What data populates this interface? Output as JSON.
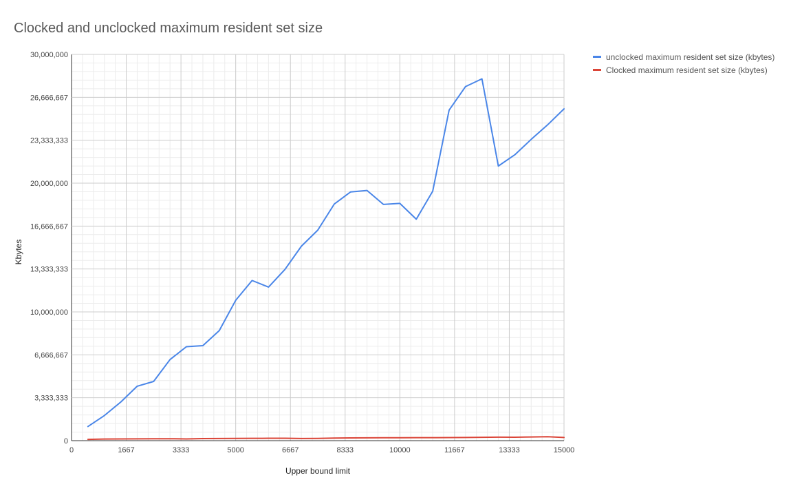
{
  "title": "Clocked and unclocked maximum resident set size",
  "chart_data": {
    "type": "line",
    "title": "Clocked and unclocked maximum resident set size",
    "xlabel": "Upper bound limit",
    "ylabel": "Kbytes",
    "xlim": [
      0,
      15000
    ],
    "ylim": [
      0,
      30000000
    ],
    "x_ticks": [
      "0",
      "1667",
      "3333",
      "5000",
      "6667",
      "8333",
      "10000",
      "11667",
      "13333",
      "15000"
    ],
    "y_ticks": [
      "0",
      "3,333,333",
      "6,666,667",
      "10,000,000",
      "13,333,333",
      "16,666,667",
      "20,000,000",
      "23,333,333",
      "26,666,667",
      "30,000,000"
    ],
    "grid": true,
    "legend_position": "top-right",
    "x": [
      500,
      1000,
      1500,
      2000,
      2500,
      3000,
      3500,
      4000,
      4500,
      5000,
      5500,
      6000,
      6500,
      7000,
      7500,
      8000,
      8500,
      9000,
      9500,
      10000,
      10500,
      11000,
      11500,
      12000,
      12500,
      13000,
      13500,
      14000,
      14500,
      15000
    ],
    "series": [
      {
        "name": "unclocked maximum resident set size (kbytes)",
        "color": "#4a86e8",
        "values": [
          1100000,
          1950000,
          3000000,
          4230000,
          4600000,
          6300000,
          7300000,
          7380000,
          8550000,
          10900000,
          12440000,
          11930000,
          13300000,
          15100000,
          16350000,
          18370000,
          19320000,
          19430000,
          18350000,
          18430000,
          17200000,
          19370000,
          25670000,
          27500000,
          28100000,
          21330000,
          22200000,
          23400000,
          24530000,
          25770000
        ]
      },
      {
        "name": "Clocked maximum resident set size (kbytes)",
        "color": "#db4437",
        "values": [
          100000,
          130000,
          135000,
          140000,
          145000,
          150000,
          135000,
          160000,
          170000,
          175000,
          180000,
          185000,
          185000,
          170000,
          175000,
          200000,
          215000,
          220000,
          225000,
          230000,
          235000,
          235000,
          240000,
          250000,
          260000,
          275000,
          270000,
          285000,
          310000,
          250000
        ]
      }
    ]
  }
}
